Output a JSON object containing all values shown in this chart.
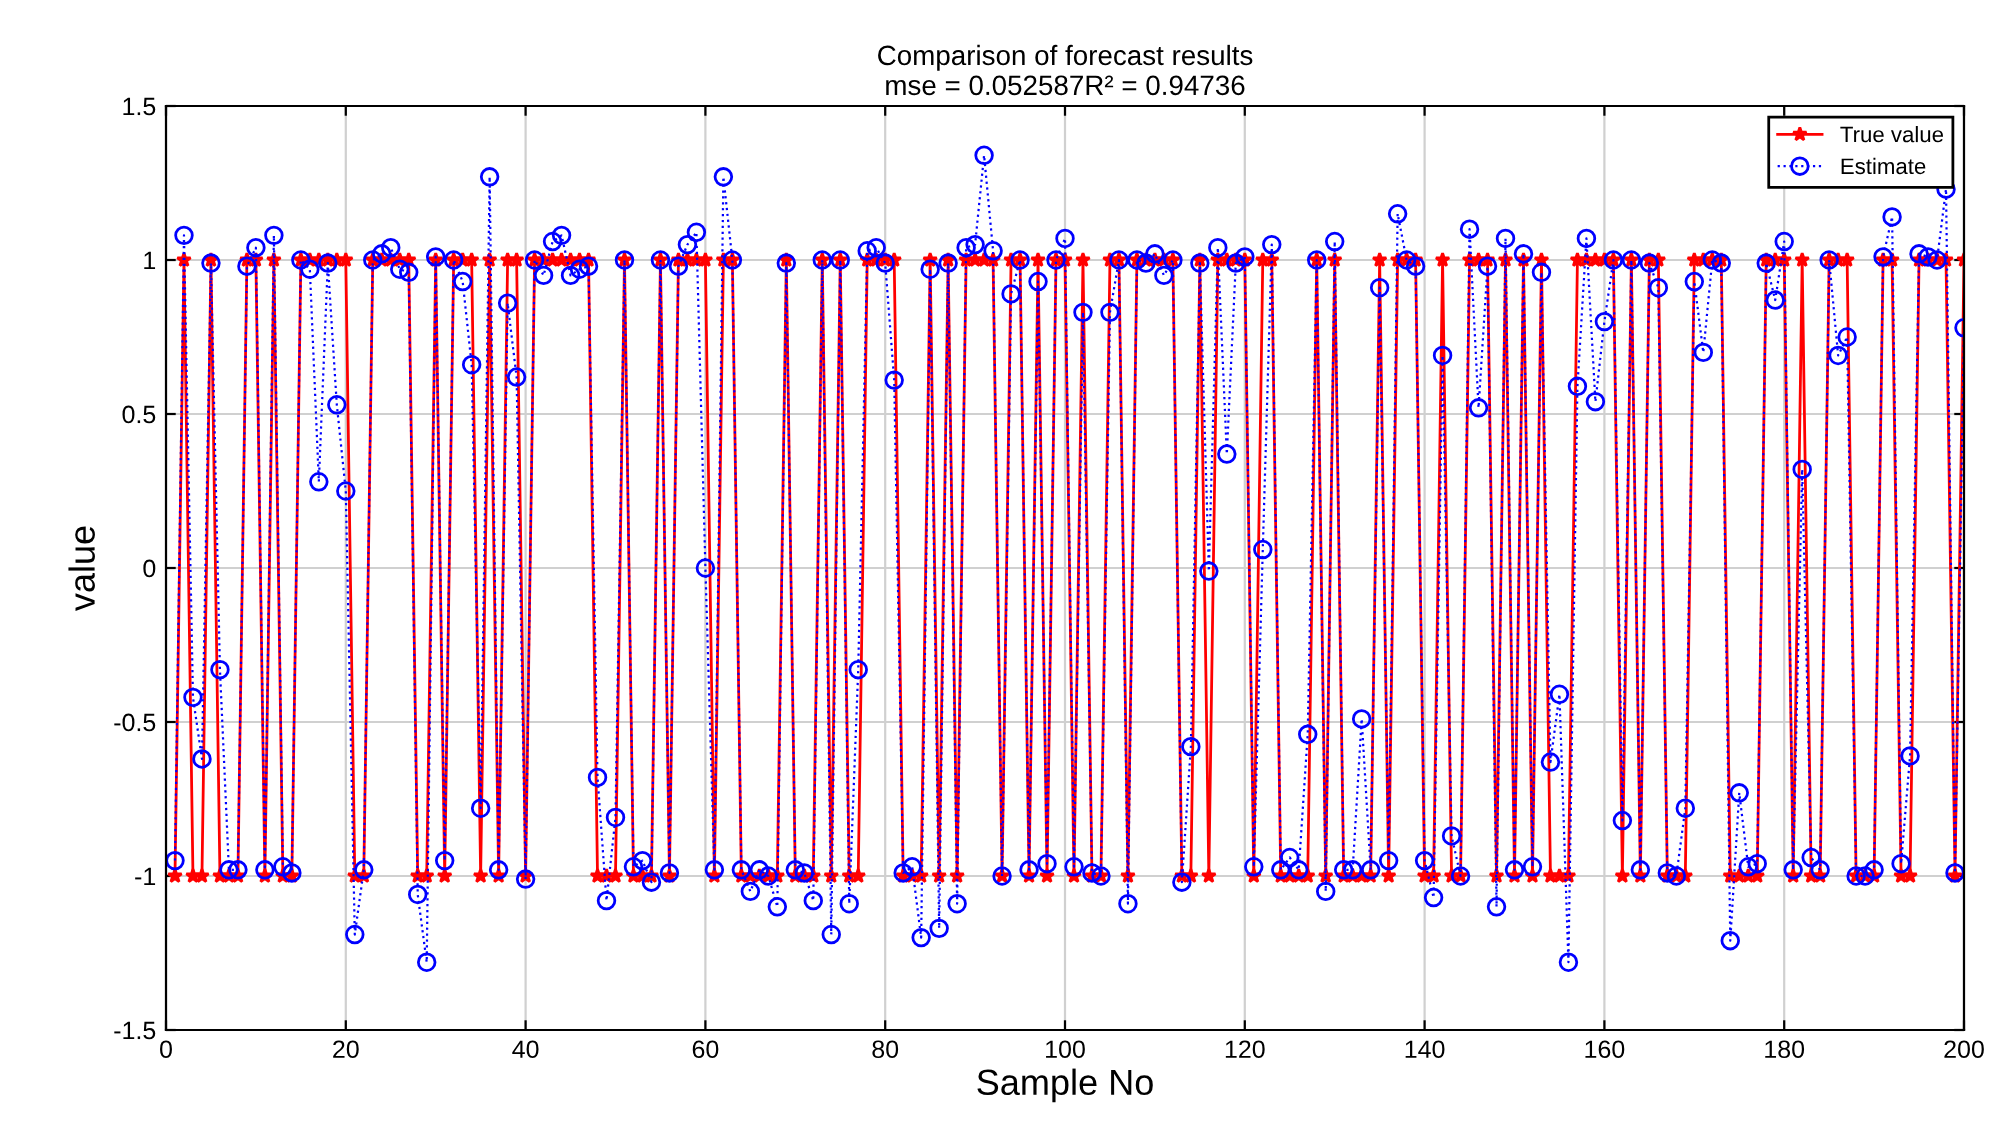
{
  "chart_data": {
    "type": "line",
    "title": "Comparison of forecast results",
    "subtitle": "mse = 0.052587R² = 0.94736",
    "xlabel": "Sample No",
    "ylabel": "value",
    "x": [
      1,
      2,
      3,
      4,
      5,
      6,
      7,
      8,
      9,
      10,
      11,
      12,
      13,
      14,
      15,
      16,
      17,
      18,
      19,
      20,
      21,
      22,
      23,
      24,
      25,
      26,
      27,
      28,
      29,
      30,
      31,
      32,
      33,
      34,
      35,
      36,
      37,
      38,
      39,
      40,
      41,
      42,
      43,
      44,
      45,
      46,
      47,
      48,
      49,
      50,
      51,
      52,
      53,
      54,
      55,
      56,
      57,
      58,
      59,
      60,
      61,
      62,
      63,
      64,
      65,
      66,
      67,
      68,
      69,
      70,
      71,
      72,
      73,
      74,
      75,
      76,
      77,
      78,
      79,
      80,
      81,
      82,
      83,
      84,
      85,
      86,
      87,
      88,
      89,
      90,
      91,
      92,
      93,
      94,
      95,
      96,
      97,
      98,
      99,
      100,
      101,
      102,
      103,
      104,
      105,
      106,
      107,
      108,
      109,
      110,
      111,
      112,
      113,
      114,
      115,
      116,
      117,
      118,
      119,
      120,
      121,
      122,
      123,
      124,
      125,
      126,
      127,
      128,
      129,
      130,
      131,
      132,
      133,
      134,
      135,
      136,
      137,
      138,
      139,
      140,
      141,
      142,
      143,
      144,
      145,
      146,
      147,
      148,
      149,
      150,
      151,
      152,
      153,
      154,
      155,
      156,
      157,
      158,
      159,
      160,
      161,
      162,
      163,
      164,
      165,
      166,
      167,
      168,
      169,
      170,
      171,
      172,
      173,
      174,
      175,
      176,
      177,
      178,
      179,
      180,
      181,
      182,
      183,
      184,
      185,
      186,
      187,
      188,
      189,
      190,
      191,
      192,
      193,
      194,
      195,
      196,
      197,
      198,
      199,
      200
    ],
    "series": [
      {
        "name": "True value",
        "color": "#ff0000",
        "marker": "star",
        "line_style": "solid",
        "values": [
          -1,
          1,
          -1,
          -1,
          1,
          -1,
          -1,
          -1,
          1,
          1,
          -1,
          1,
          -1,
          -1,
          1,
          1,
          1,
          1,
          1,
          1,
          -1,
          -1,
          1,
          1,
          1,
          1,
          1,
          -1,
          -1,
          1,
          -1,
          1,
          1,
          1,
          -1,
          1,
          -1,
          1,
          1,
          -1,
          1,
          1,
          1,
          1,
          1,
          1,
          1,
          -1,
          -1,
          -1,
          1,
          -1,
          -1,
          -1,
          1,
          -1,
          1,
          1,
          1,
          1,
          -1,
          1,
          1,
          -1,
          -1,
          -1,
          -1,
          -1,
          1,
          -1,
          -1,
          -1,
          1,
          -1,
          1,
          -1,
          -1,
          1,
          1,
          1,
          1,
          -1,
          -1,
          -1,
          1,
          -1,
          1,
          -1,
          1,
          1,
          1,
          1,
          -1,
          1,
          1,
          -1,
          1,
          -1,
          1,
          1,
          -1,
          1,
          -1,
          -1,
          1,
          1,
          -1,
          1,
          1,
          1,
          1,
          1,
          -1,
          -1,
          1,
          -1,
          1,
          1,
          1,
          1,
          -1,
          1,
          1,
          -1,
          -1,
          -1,
          -1,
          1,
          -1,
          1,
          -1,
          -1,
          -1,
          -1,
          1,
          -1,
          1,
          1,
          1,
          -1,
          -1,
          1,
          -1,
          -1,
          1,
          1,
          1,
          -1,
          1,
          -1,
          1,
          -1,
          1,
          -1,
          -1,
          -1,
          1,
          1,
          1,
          1,
          1,
          -1,
          1,
          -1,
          1,
          1,
          -1,
          -1,
          -1,
          1,
          1,
          1,
          1,
          -1,
          -1,
          -1,
          -1,
          1,
          1,
          1,
          -1,
          1,
          -1,
          -1,
          1,
          1,
          1,
          -1,
          -1,
          -1,
          1,
          1,
          -1,
          -1,
          1,
          1,
          1,
          1,
          -1,
          1
        ]
      },
      {
        "name": "Estimate",
        "color": "#0000ff",
        "marker": "circle",
        "line_style": "dotted",
        "values": [
          -0.95,
          1.08,
          -0.42,
          -0.62,
          0.99,
          -0.33,
          -0.98,
          -0.98,
          0.98,
          1.04,
          -0.98,
          1.08,
          -0.97,
          -0.99,
          1.0,
          0.97,
          0.28,
          0.99,
          0.53,
          0.25,
          -1.19,
          -0.98,
          1.0,
          1.02,
          1.04,
          0.97,
          0.96,
          -1.06,
          -1.28,
          1.01,
          -0.95,
          1.0,
          0.93,
          0.66,
          -0.78,
          1.27,
          -0.98,
          0.86,
          0.62,
          -1.01,
          1.0,
          0.95,
          1.06,
          1.08,
          0.95,
          0.97,
          0.98,
          -0.68,
          -1.08,
          -0.81,
          1.0,
          -0.97,
          -0.95,
          -1.02,
          1.0,
          -0.99,
          0.98,
          1.05,
          1.09,
          0.0,
          -0.98,
          1.27,
          1.0,
          -0.98,
          -1.05,
          -0.98,
          -1.0,
          -1.1,
          0.99,
          -0.98,
          -0.99,
          -1.08,
          1.0,
          -1.19,
          1.0,
          -1.09,
          -0.33,
          1.03,
          1.04,
          0.99,
          0.61,
          -0.99,
          -0.97,
          -1.2,
          0.97,
          -1.17,
          0.99,
          -1.09,
          1.04,
          1.05,
          1.34,
          1.03,
          -1.0,
          0.89,
          1.0,
          -0.98,
          0.93,
          -0.96,
          1.0,
          1.07,
          -0.97,
          0.83,
          -0.99,
          -1.0,
          0.83,
          1.0,
          -1.09,
          1.0,
          0.99,
          1.02,
          0.95,
          1.0,
          -1.02,
          -0.58,
          0.99,
          -0.01,
          1.04,
          0.37,
          0.99,
          1.01,
          -0.97,
          0.06,
          1.05,
          -0.98,
          -0.94,
          -0.98,
          -0.54,
          1.0,
          -1.05,
          1.06,
          -0.98,
          -0.98,
          -0.49,
          -0.98,
          0.91,
          -0.95,
          1.15,
          1.0,
          0.98,
          -0.95,
          -1.07,
          0.69,
          -0.87,
          -1.0,
          1.1,
          0.52,
          0.98,
          -1.1,
          1.07,
          -0.98,
          1.02,
          -0.97,
          0.96,
          -0.63,
          -0.41,
          -1.28,
          0.59,
          1.07,
          0.54,
          0.8,
          1.0,
          -0.82,
          1.0,
          -0.98,
          0.99,
          0.91,
          -0.99,
          -1.0,
          -0.78,
          0.93,
          0.7,
          1.0,
          0.99,
          -1.21,
          -0.73,
          -0.97,
          -0.96,
          0.99,
          0.87,
          1.06,
          -0.98,
          0.32,
          -0.94,
          -0.98,
          1.0,
          0.69,
          0.75,
          -1.0,
          -1.0,
          -0.98,
          1.01,
          1.14,
          -0.96,
          -0.61,
          1.02,
          1.01,
          1.0,
          1.23,
          -0.99,
          0.78
        ]
      }
    ],
    "xlim": [
      0,
      200
    ],
    "xticks": [
      0,
      20,
      40,
      60,
      80,
      100,
      120,
      140,
      160,
      180,
      200
    ],
    "ylim": [
      -1.5,
      1.5
    ],
    "yticks": [
      -1.5,
      -1,
      -0.5,
      0,
      0.5,
      1,
      1.5
    ],
    "grid": true,
    "legend": "top right"
  }
}
